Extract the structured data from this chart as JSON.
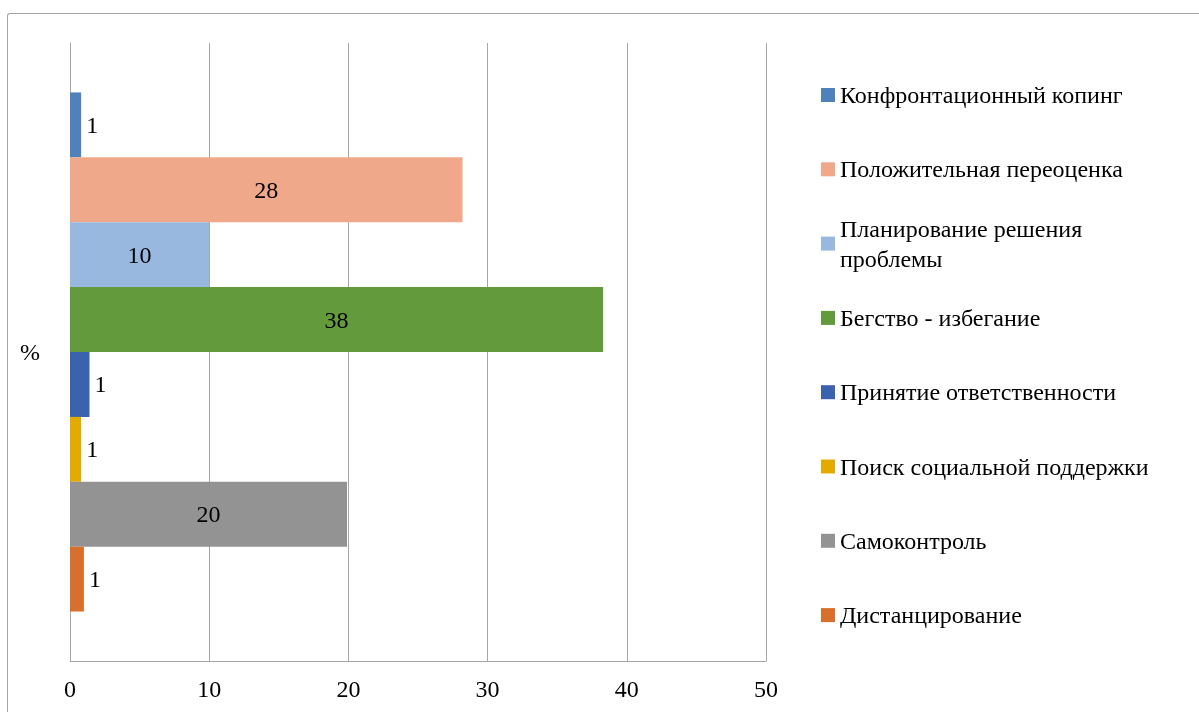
{
  "chart_data": {
    "type": "bar",
    "orientation": "horizontal",
    "categories": [
      null
    ],
    "ylabel": "%",
    "series": [
      {
        "name": "Конфронтационный копинг",
        "color": "#4f81bd",
        "values": [
          0.8
        ],
        "value_labels": [
          "1"
        ]
      },
      {
        "name": "Положительная переоценка",
        "color": "#f0a88a",
        "values": [
          28.2
        ],
        "value_labels": [
          "28"
        ]
      },
      {
        "name": "Планирование решения проблемы",
        "color": "#98b8e0",
        "values": [
          10.0
        ],
        "value_labels": [
          "10"
        ]
      },
      {
        "name": "Бегство - избегание",
        "color": "#629a3c",
        "values": [
          38.3
        ],
        "value_labels": [
          "38"
        ]
      },
      {
        "name": "Принятие ответственности",
        "color": "#3a62ae",
        "values": [
          1.4
        ],
        "value_labels": [
          "1"
        ]
      },
      {
        "name": "Поиск социальной поддержки",
        "color": "#e3aa00",
        "values": [
          0.8
        ],
        "value_labels": [
          "1"
        ]
      },
      {
        "name": "Самоконтроль",
        "color": "#939393",
        "values": [
          19.9
        ],
        "value_labels": [
          "20"
        ]
      },
      {
        "name": "Дистанцирование",
        "color": "#d6702c",
        "values": [
          1.0
        ],
        "value_labels": [
          "1"
        ]
      }
    ],
    "xlim": [
      0,
      50
    ],
    "xticks": [
      0,
      10,
      20,
      30,
      40,
      50
    ],
    "grid": "x",
    "legend": "right"
  }
}
